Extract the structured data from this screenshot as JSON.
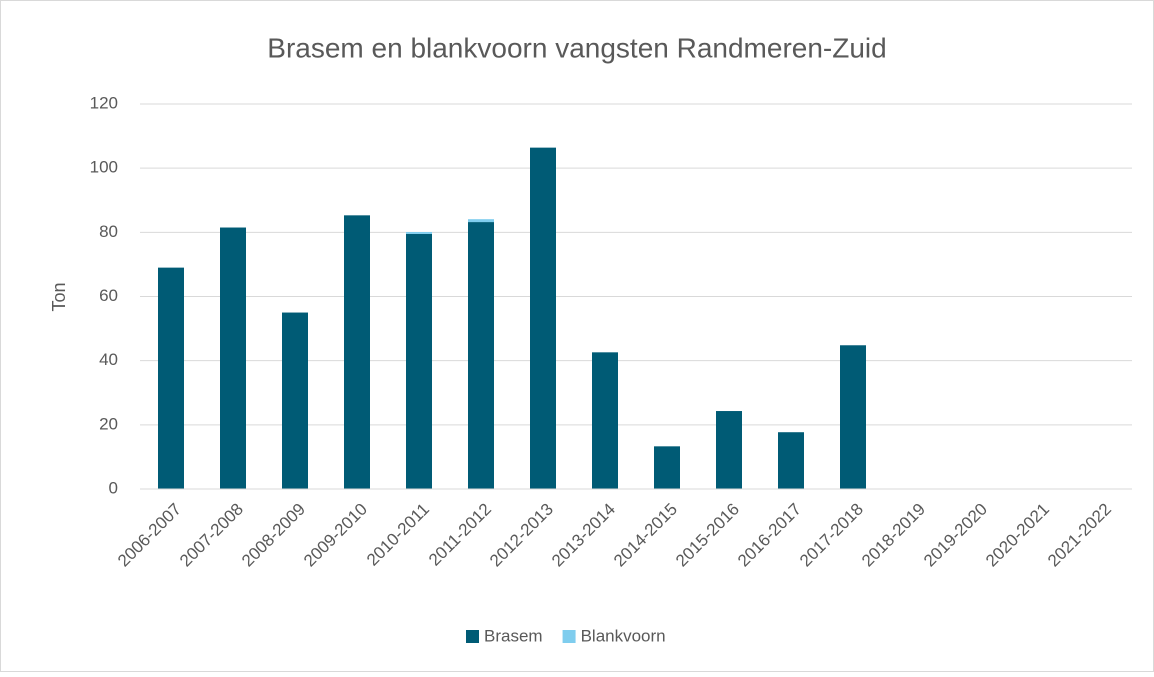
{
  "chart_data": {
    "type": "stacked_bar",
    "title": "Brasem en blankvoorn vangsten Randmeren-Zuid",
    "y_label": "Ton",
    "categories": [
      "2006-2007",
      "2007-2008",
      "2008-2009",
      "2009-2010",
      "2010-2011",
      "2011-2012",
      "2012-2013",
      "2013-2014",
      "2014-2015",
      "2015-2016",
      "2016-2017",
      "2017-2018",
      "2018-2019",
      "2019-2020",
      "2020-2021",
      "2021-2022"
    ],
    "series": [
      {
        "name": "Brasem",
        "color": "#005b75",
        "values": [
          69,
          81.5,
          55,
          85.3,
          79.5,
          83.2,
          106.4,
          42.6,
          13.3,
          24.3,
          17.7,
          44.8,
          null,
          null,
          null,
          null
        ]
      },
      {
        "name": "Blankvoorn",
        "color": "#7fcdee",
        "values": [
          0,
          0,
          0,
          0,
          0.6,
          0.9,
          0,
          0,
          0,
          0,
          0,
          0,
          null,
          null,
          null,
          null
        ]
      }
    ],
    "ylim": [
      0,
      120
    ],
    "yticks": [
      0,
      20,
      40,
      60,
      80,
      100,
      120
    ],
    "grid": true,
    "legend": "bottom"
  }
}
